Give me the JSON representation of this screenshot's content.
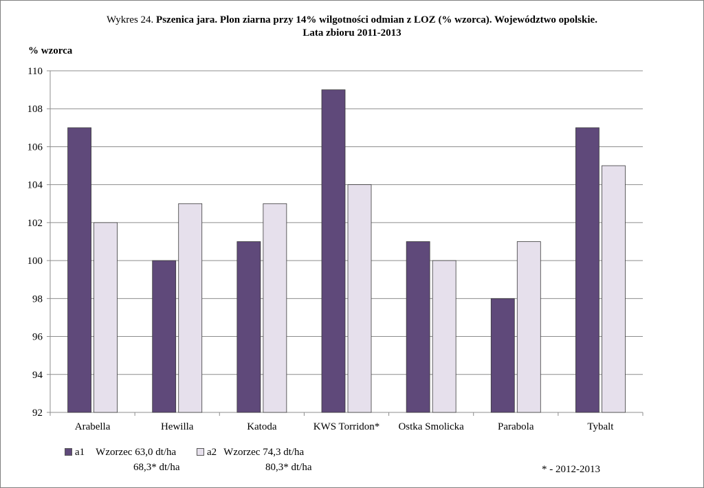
{
  "chart_data": {
    "type": "bar",
    "title_prefix": "Wykres 24.",
    "title_bold": "Pszenica jara. Plon ziarna przy 14% wilgotności odmian z LOZ (% wzorca). Województwo  opolskie.",
    "title_line2": "Lata zbioru 2011-2013",
    "ylabel": "% wzorca",
    "xlabel": "",
    "ylim": [
      92,
      110
    ],
    "yticks": [
      "92",
      "94",
      "96",
      "98",
      "100",
      "102",
      "104",
      "106",
      "108",
      "110"
    ],
    "categories": [
      "Arabella",
      "Hewilla",
      "Katoda",
      "KWS Torridon*",
      "Ostka Smolicka",
      "Parabola",
      "Tybalt"
    ],
    "series": [
      {
        "name": "a1",
        "color": "#5f497a",
        "values": [
          107,
          100,
          101,
          109,
          101,
          98,
          107
        ]
      },
      {
        "name": "a2",
        "color": "#e6e0ec",
        "values": [
          102,
          103,
          103,
          104,
          100,
          101,
          105
        ]
      }
    ],
    "grid": true,
    "legend_position": "bottom-left"
  },
  "legend": {
    "a1_name": "a1",
    "a1_text": "Wzorzec 63,0 dt/ha",
    "a1_text2": "68,3* dt/ha",
    "a2_name": "a2",
    "a2_text": "Wzorzec 74,3 dt/ha",
    "a2_text2": "80,3* dt/ha"
  },
  "footnote": "* - 2012-2013"
}
